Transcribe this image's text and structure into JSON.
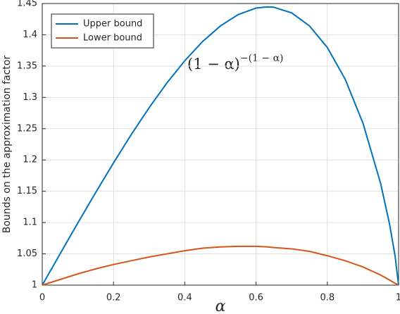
{
  "chart_data": {
    "type": "line",
    "xlabel": "α",
    "ylabel": "Bounds on the approximation factor",
    "annotation": {
      "base": "(1 − α)",
      "exponent": "−(1 − α)"
    },
    "x": [
      0,
      0.05,
      0.1,
      0.15,
      0.2,
      0.25,
      0.3,
      0.35,
      0.4,
      0.45,
      0.5,
      0.55,
      0.6,
      0.632,
      0.65,
      0.7,
      0.75,
      0.8,
      0.85,
      0.9,
      0.95,
      0.975,
      0.99,
      1
    ],
    "series": [
      {
        "name": "Upper bound",
        "color": "#0072bd",
        "values": [
          1,
          1.0499,
          1.0995,
          1.1481,
          1.1954,
          1.2408,
          1.2836,
          1.3232,
          1.3586,
          1.3893,
          1.4142,
          1.4324,
          1.4427,
          1.4447,
          1.444,
          1.435,
          1.4142,
          1.3797,
          1.3292,
          1.2589,
          1.1616,
          1.0966,
          1.0471,
          1
        ]
      },
      {
        "name": "Lower bound",
        "color": "#d95319",
        "values": [
          1,
          1.009,
          1.018,
          1.026,
          1.033,
          1.039,
          1.045,
          1.05,
          1.055,
          1.059,
          1.061,
          1.062,
          1.062,
          1.061,
          1.06,
          1.058,
          1.054,
          1.047,
          1.039,
          1.029,
          1.016,
          1.008,
          1.003,
          1
        ]
      }
    ],
    "xlim": [
      0,
      1
    ],
    "xticks": [
      0,
      0.2,
      0.4,
      0.6,
      0.8,
      1
    ],
    "ylim": [
      1,
      1.45
    ],
    "yticks": [
      1,
      1.05,
      1.1,
      1.15,
      1.2,
      1.25,
      1.3,
      1.35,
      1.4,
      1.45
    ],
    "grid": true,
    "legend": "upper left"
  }
}
